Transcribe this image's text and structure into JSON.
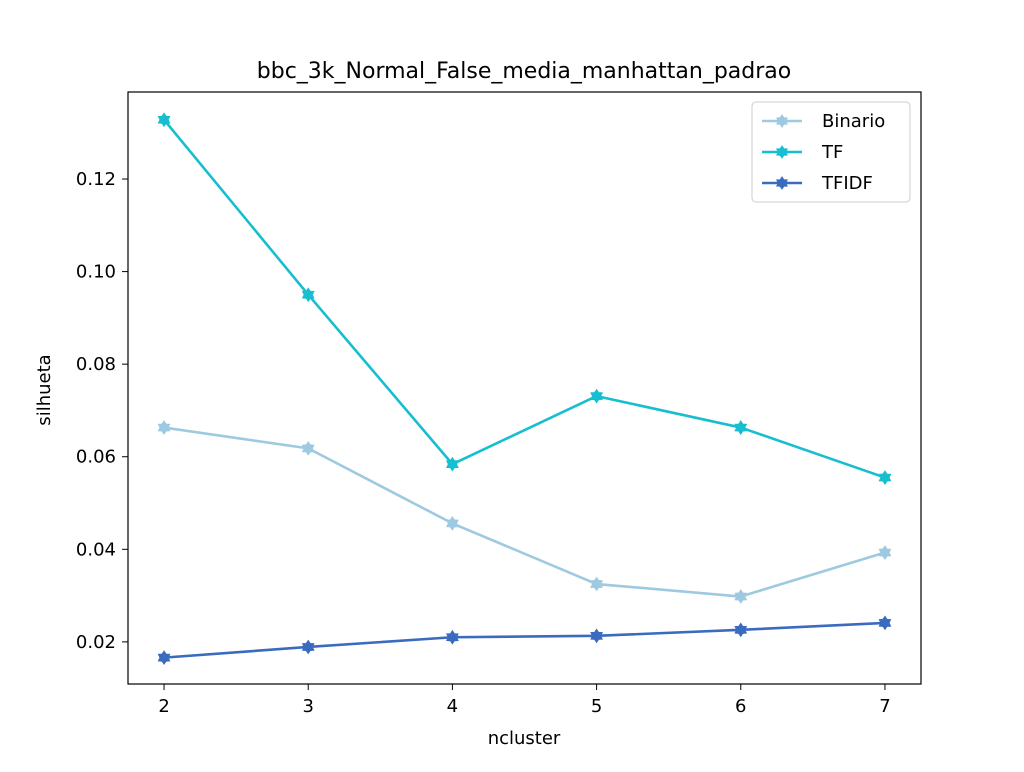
{
  "chart_data": {
    "type": "line",
    "title": "bbc_3k_Normal_False_media_manhattan_padrao",
    "xlabel": "ncluster",
    "ylabel": "silhueta",
    "x": [
      2,
      3,
      4,
      5,
      6,
      7
    ],
    "x_ticks": [
      "2",
      "3",
      "4",
      "5",
      "6",
      "7"
    ],
    "y_ticks": [
      "0.02",
      "0.04",
      "0.06",
      "0.08",
      "0.10",
      "0.12"
    ],
    "xlim": [
      1.75,
      7.25
    ],
    "ylim": [
      0.0109,
      0.1388
    ],
    "grid": false,
    "legend_position": "top-right",
    "series": [
      {
        "name": "Binario",
        "color": "#9ecae1",
        "values": [
          0.0663,
          0.0618,
          0.0456,
          0.0325,
          0.0298,
          0.0393
        ]
      },
      {
        "name": "TF",
        "color": "#17becf",
        "values": [
          0.1328,
          0.095,
          0.0584,
          0.0731,
          0.0663,
          0.0555
        ]
      },
      {
        "name": "TFIDF",
        "color": "#3a6bbf",
        "values": [
          0.0166,
          0.0189,
          0.021,
          0.0213,
          0.0226,
          0.0241
        ]
      }
    ]
  }
}
